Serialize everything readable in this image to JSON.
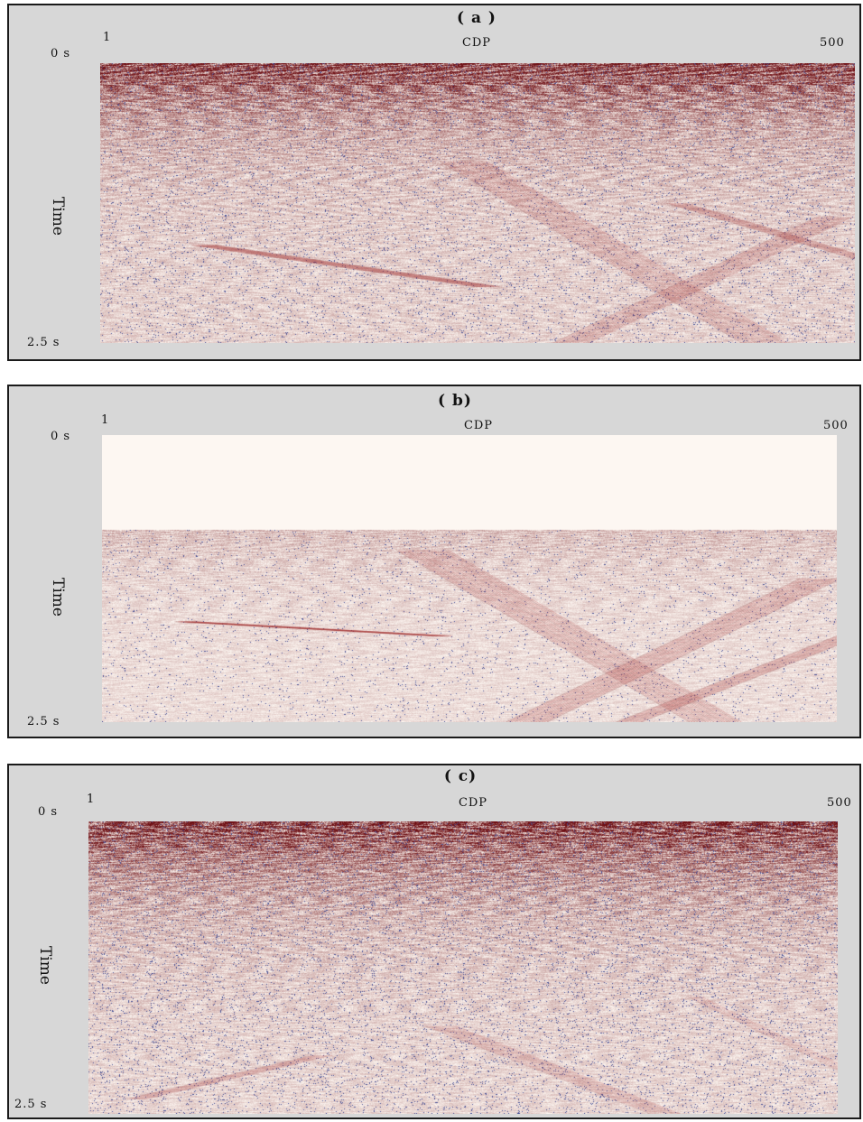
{
  "panels": [
    {
      "id": "a",
      "title": "( a )",
      "x_axis_label": "CDP",
      "x_start": "1",
      "x_end": "500",
      "y_axis_label": "Time",
      "y_top": "0 s",
      "y_bottom": "2.5 s",
      "description": "raw seismic section with strong near-surface noise"
    },
    {
      "id": "b",
      "title": "( b)",
      "x_axis_label": "CDP",
      "x_start": "1",
      "x_end": "500",
      "y_axis_label": "Time",
      "y_top": "0 s",
      "y_bottom": "2.5 s",
      "description": "muted section, upper portion blank"
    },
    {
      "id": "c",
      "title": "( c)",
      "x_axis_label": "CDP",
      "x_start": "1",
      "x_end": "500",
      "y_axis_label": "Time",
      "y_top": "0 s",
      "y_bottom": "2.5 s",
      "description": "processed seismic section"
    }
  ],
  "colors": {
    "frame_bg": "#d7d7d7",
    "dark_red": "#6e0f0f",
    "red": "#b52a2a",
    "pink": "#e8c6c0",
    "blue": "#3b4a8c",
    "paper": "#fdf7f2"
  }
}
